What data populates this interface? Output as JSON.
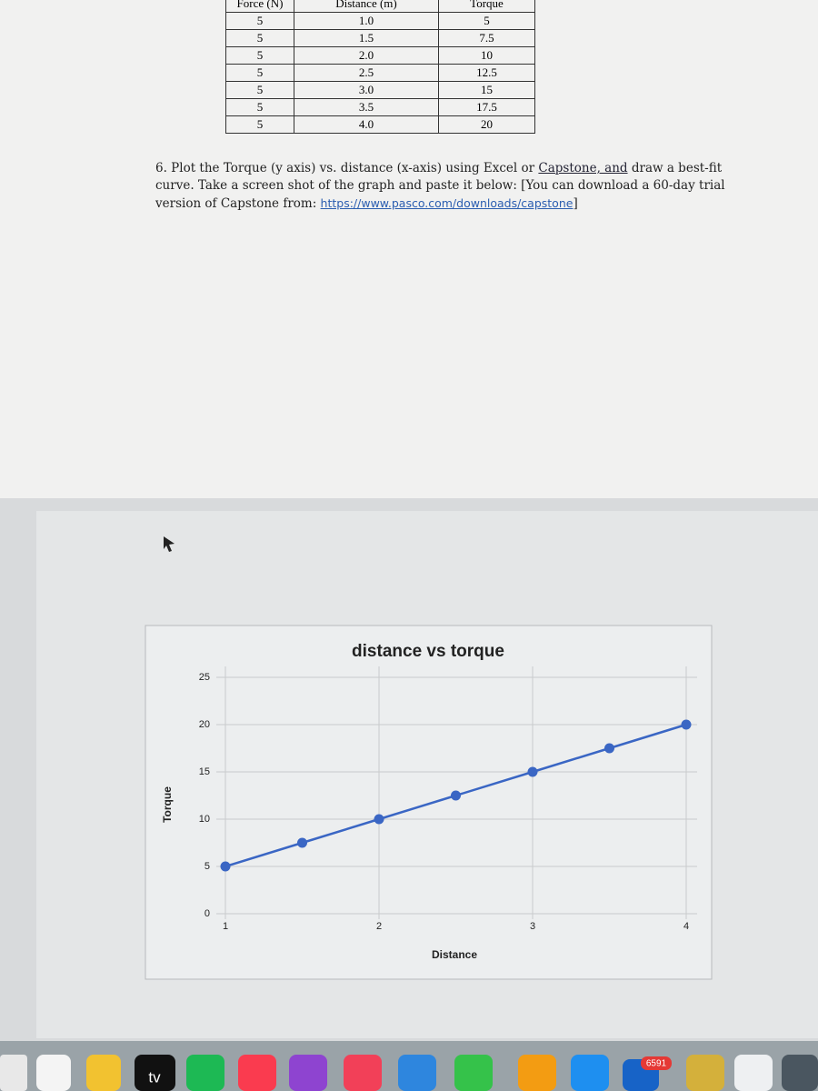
{
  "document": {
    "table": {
      "headers": [
        "Force (N)",
        "Distance (m)",
        "Torque"
      ],
      "rows": [
        [
          "5",
          "1.0",
          "5"
        ],
        [
          "5",
          "1.5",
          "7.5"
        ],
        [
          "5",
          "2.0",
          "10"
        ],
        [
          "5",
          "2.5",
          "12.5"
        ],
        [
          "5",
          "3.0",
          "15"
        ],
        [
          "5",
          "3.5",
          "17.5"
        ],
        [
          "5",
          "4.0",
          "20"
        ]
      ]
    },
    "question": {
      "text_before": "6. Plot the Torque (y axis) vs. distance (x-axis) using Excel or ",
      "link_text": "Capstone, and",
      "text_after": " draw a best-fit curve.  Take a screen shot of the graph and paste it below: [You can download a 60-day trial version of Capstone from: ",
      "url": "https://www.pasco.com/downloads/capstone",
      "closing": "]"
    }
  },
  "chart_data": {
    "type": "line",
    "title": "distance vs torque",
    "x_label": "Distance",
    "y_label": "Torque",
    "x": [
      1,
      1.5,
      2,
      2.5,
      3,
      3.5,
      4
    ],
    "values": [
      5,
      7.5,
      10,
      12.5,
      15,
      17.5,
      20
    ],
    "color": "#3a66c4",
    "xlim": [
      1,
      4
    ],
    "ylim": [
      0,
      25
    ],
    "xticks": [
      1,
      2,
      3,
      4
    ],
    "yticks": [
      0,
      5,
      10,
      15,
      20,
      25
    ],
    "grid": true
  },
  "dock": {
    "tv_label": "tv",
    "badge": "6591"
  }
}
